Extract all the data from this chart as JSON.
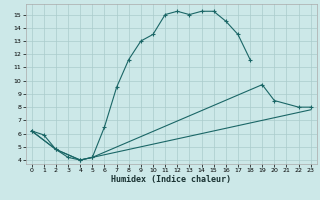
{
  "xlabel": "Humidex (Indice chaleur)",
  "bg_color": "#cce8e8",
  "grid_color": "#aacccc",
  "line_color": "#1a6666",
  "xlim": [
    -0.5,
    23.5
  ],
  "ylim": [
    3.7,
    15.8
  ],
  "xticks": [
    0,
    1,
    2,
    3,
    4,
    5,
    6,
    7,
    8,
    9,
    10,
    11,
    12,
    13,
    14,
    15,
    16,
    17,
    18,
    19,
    20,
    21,
    22,
    23
  ],
  "yticks": [
    4,
    5,
    6,
    7,
    8,
    9,
    10,
    11,
    12,
    13,
    14,
    15
  ],
  "curve1_x": [
    0,
    1,
    2,
    3,
    4,
    5,
    6,
    7,
    8,
    9,
    10,
    11,
    12,
    13,
    14,
    15,
    16,
    17,
    18
  ],
  "curve1_y": [
    6.2,
    5.9,
    4.8,
    4.2,
    4.0,
    4.2,
    6.5,
    9.5,
    11.6,
    13.0,
    13.5,
    15.0,
    15.25,
    15.0,
    15.25,
    15.25,
    14.5,
    13.5,
    11.6
  ],
  "curve2_x": [
    0,
    2,
    4,
    5,
    19,
    20,
    22,
    23
  ],
  "curve2_y": [
    6.2,
    4.8,
    4.0,
    4.2,
    9.7,
    8.5,
    8.0,
    8.0
  ],
  "curve3_x": [
    0,
    2,
    4,
    5,
    23
  ],
  "curve3_y": [
    6.2,
    4.8,
    4.0,
    4.2,
    7.8
  ]
}
